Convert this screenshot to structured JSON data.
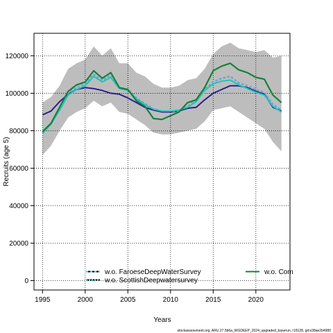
{
  "chart_data": {
    "type": "line",
    "xlabel": "Years",
    "ylabel": "Recruits (age 5)",
    "xlim": [
      1994,
      2024
    ],
    "ylim": [
      -5000,
      132000
    ],
    "x_ticks": [
      1995,
      2000,
      2005,
      2010,
      2015,
      2020
    ],
    "y_ticks": [
      0,
      20000,
      40000,
      60000,
      80000,
      100000,
      120000
    ],
    "grid": true,
    "legend_position": "bottom",
    "band": {
      "color": "#bdbdbd",
      "x": [
        1995,
        1996,
        1997,
        1998,
        1999,
        2000,
        2001,
        2002,
        2003,
        2004,
        2005,
        2006,
        2007,
        2008,
        2009,
        2010,
        2011,
        2012,
        2013,
        2014,
        2015,
        2016,
        2017,
        2018,
        2019,
        2020,
        2021,
        2022,
        2023
      ],
      "upper": [
        95000,
        98000,
        104000,
        113000,
        116000,
        118000,
        125000,
        120000,
        124000,
        116000,
        116000,
        111000,
        109000,
        105000,
        103000,
        103000,
        104000,
        107000,
        108000,
        113000,
        121000,
        125000,
        127000,
        124000,
        123000,
        122000,
        123000,
        119000,
        120000
      ],
      "lower": [
        67000,
        72000,
        80000,
        87000,
        90000,
        92000,
        96000,
        93000,
        95000,
        90000,
        89000,
        86000,
        83000,
        79000,
        78000,
        78000,
        79000,
        80000,
        81000,
        85000,
        91000,
        92000,
        93000,
        90000,
        87000,
        84000,
        81000,
        74000,
        69000
      ]
    },
    "x": [
      1995,
      1996,
      1997,
      1998,
      1999,
      2000,
      2001,
      2002,
      2003,
      2004,
      2005,
      2006,
      2007,
      2008,
      2009,
      2010,
      2011,
      2012,
      2013,
      2014,
      2015,
      2016,
      2017,
      2018,
      2019,
      2020,
      2021,
      2022,
      2023
    ],
    "series": [
      {
        "color": "#2b1f8c",
        "width": 2,
        "dash": "",
        "values": [
          88500,
          90500,
          95500,
          99500,
          102000,
          103000,
          102500,
          101500,
          100000,
          99500,
          97500,
          95000,
          92500,
          91000,
          90000,
          90000,
          90500,
          92000,
          92500,
          96500,
          100000,
          102000,
          104000,
          104000,
          103000,
          101000,
          99500,
          92500,
          90500
        ]
      },
      {
        "name": "w.o. FaroeseDeepWaterSurvey",
        "color": "#000000",
        "width": 2,
        "dash": "3,3",
        "values": [
          79000,
          84000,
          92000,
          100000,
          103000,
          105000,
          110000,
          107000,
          109500,
          103000,
          102000,
          97500,
          94500,
          91500,
          90500,
          90500,
          90500,
          93000,
          96500,
          102000,
          106000,
          108000,
          109000,
          105500,
          104000,
          102000,
          100500,
          94000,
          91000
        ]
      },
      {
        "name": "w.o. FaroeseDeepWaterSurvey (overlay)",
        "color": "#5fb6ea",
        "width": 2,
        "dash": "3,3",
        "values": [
          79000,
          84000,
          92000,
          100000,
          103000,
          105000,
          110000,
          107000,
          109500,
          103000,
          102000,
          97500,
          94500,
          91500,
          90500,
          90500,
          90500,
          93000,
          96500,
          102000,
          106000,
          108000,
          109000,
          105500,
          104000,
          102000,
          100500,
          94000,
          91000
        ]
      },
      {
        "name": "w.o. ScottishDeepwatersurvey",
        "color": "#21c3bf",
        "width": 2,
        "dash": "",
        "values": [
          78500,
          83500,
          91000,
          99000,
          102000,
          104000,
          109000,
          106000,
          108500,
          102500,
          101500,
          97000,
          94000,
          91500,
          90500,
          90500,
          91000,
          92500,
          95500,
          101500,
          105000,
          106500,
          107000,
          104500,
          102500,
          100500,
          99000,
          93000,
          90000
        ]
      },
      {
        "name": "w.o. Com",
        "color": "#17803a",
        "width": 2.2,
        "dash": "",
        "values": [
          79500,
          84000,
          92500,
          101000,
          104500,
          106000,
          112000,
          108000,
          111000,
          103000,
          102000,
          96000,
          93000,
          86500,
          86000,
          88000,
          90000,
          95000,
          96500,
          103000,
          112000,
          114500,
          116000,
          112500,
          111000,
          108500,
          107500,
          99000,
          95000
        ]
      }
    ],
    "legend": [
      {
        "label": "w.o. FaroeseDeepWaterSurvey",
        "color": "#5fb6ea",
        "back": "#000000",
        "dash": "3,3"
      },
      {
        "label": "w.o. ScottishDeepwatersurvey",
        "color": "#21c3bf",
        "back": "#000000",
        "dash": "2,2"
      },
      {
        "label": "w.o. Com",
        "color": "#17803a",
        "back": "",
        "dash": ""
      }
    ]
  },
  "footer": "stockassessment.org, ARU.27.5b6a_WGDEEP_2024_upgraded_baserun, r18128, git:e38ae2b4980"
}
